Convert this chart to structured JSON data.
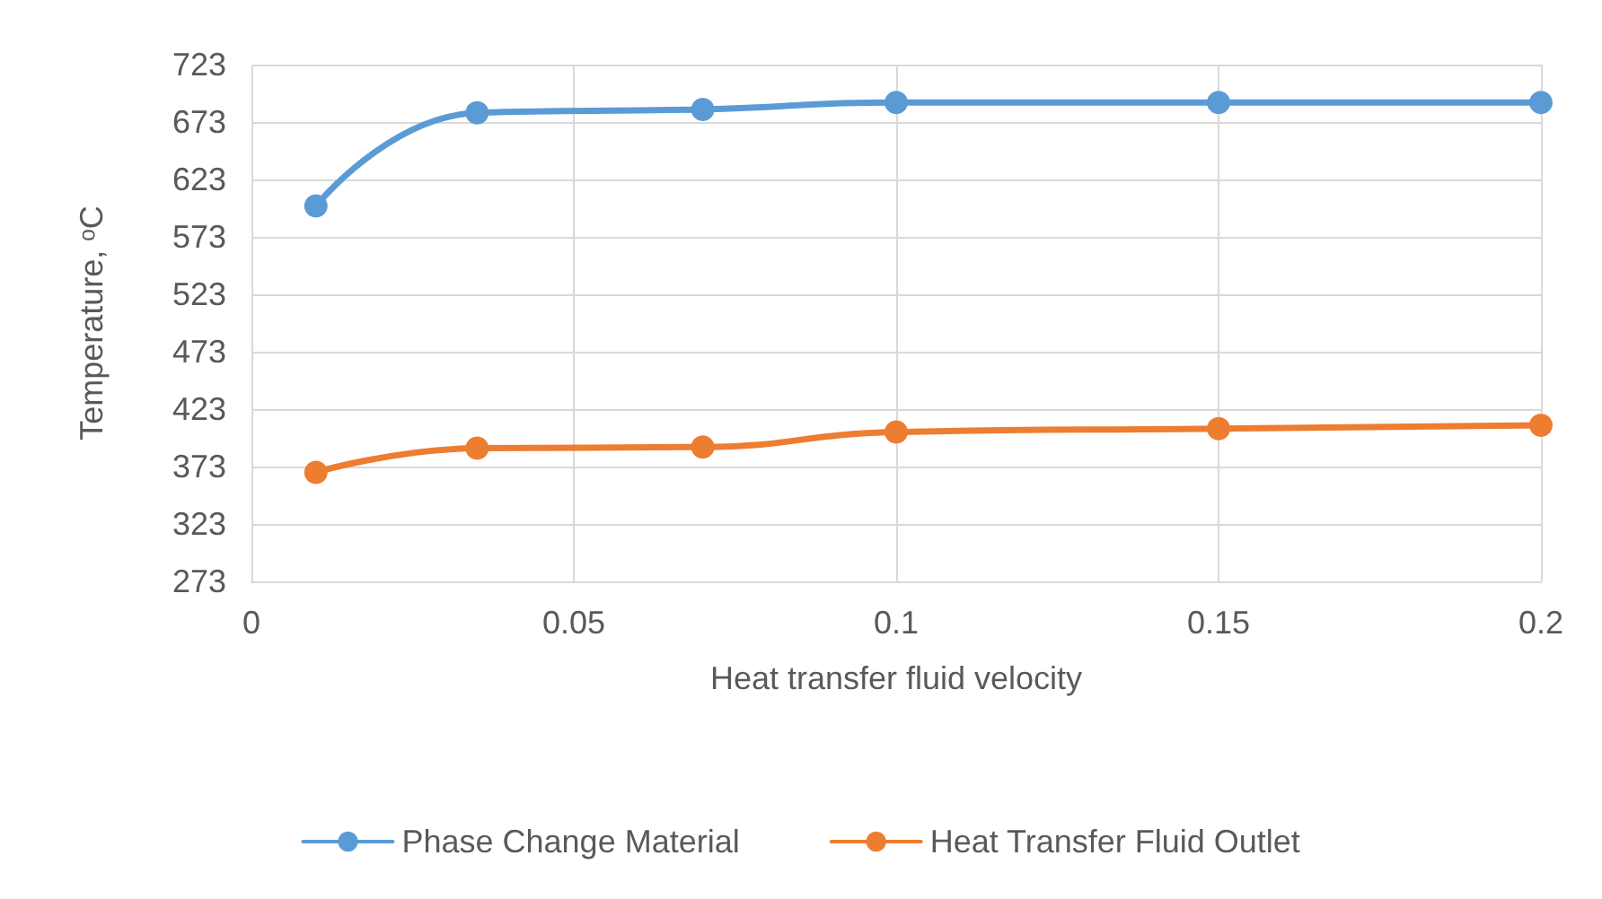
{
  "chart_data": {
    "type": "line",
    "xlabel": "Heat transfer fluid velocity",
    "ylabel": "Temperature, ᵒC",
    "x": [
      0.01,
      0.035,
      0.07,
      0.1,
      0.15,
      0.2
    ],
    "series": [
      {
        "name": "Phase Change Material",
        "color": "#5b9bd5",
        "values": [
          600,
          681,
          684,
          690,
          690,
          690
        ]
      },
      {
        "name": "Heat Transfer Fluid Outlet",
        "color": "#ed7d31",
        "values": [
          368,
          389,
          390,
          403,
          406,
          409
        ]
      }
    ],
    "xlim": [
      0,
      0.2
    ],
    "xticks": [
      0,
      0.05,
      0.1,
      0.15,
      0.2
    ],
    "ylim": [
      273,
      723
    ],
    "yticks": [
      273,
      323,
      373,
      423,
      473,
      523,
      573,
      623,
      673,
      723
    ],
    "grid": true,
    "legend": "bottom",
    "marker": "circle",
    "line_style": "solid"
  }
}
